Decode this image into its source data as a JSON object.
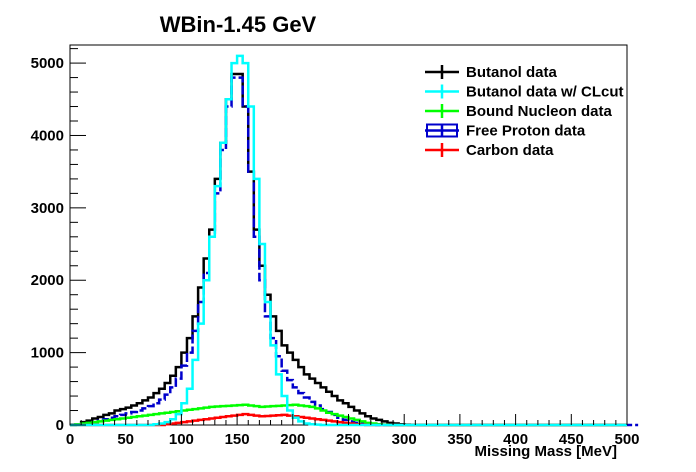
{
  "chart_data": {
    "type": "line",
    "title": "WBin-1.45 GeV",
    "xlabel": "Missing Mass [MeV]",
    "ylabel": "",
    "xlim": [
      0,
      500
    ],
    "ylim": [
      0,
      5250
    ],
    "xticks": [
      0,
      50,
      100,
      150,
      200,
      250,
      300,
      350,
      400,
      450,
      500
    ],
    "yticks": [
      0,
      1000,
      2000,
      3000,
      4000,
      5000
    ],
    "grid": false,
    "legend_position": "top-right",
    "bin_width": 5,
    "series": [
      {
        "name": "Butanol data",
        "color": "#000000",
        "values": [
          5,
          10,
          40,
          60,
          90,
          110,
          140,
          160,
          200,
          220,
          240,
          270,
          300,
          340,
          380,
          440,
          500,
          580,
          680,
          800,
          1000,
          1200,
          1500,
          1900,
          2300,
          2700,
          3400,
          3900,
          4500,
          4850,
          4850,
          4400,
          3500,
          2700,
          2200,
          1800,
          1500,
          1300,
          1100,
          1000,
          900,
          800,
          700,
          640,
          580,
          520,
          460,
          400,
          340,
          300,
          250,
          200,
          160,
          120,
          90,
          70,
          50,
          30,
          20,
          10,
          5,
          3,
          0,
          0,
          0,
          0,
          0,
          0,
          0,
          0,
          0,
          0,
          0,
          0,
          0,
          0,
          0,
          0,
          0,
          0,
          0,
          0,
          0,
          0,
          0,
          0,
          0,
          0,
          0,
          0,
          0,
          0,
          0,
          0,
          0,
          0,
          0,
          0,
          0,
          0
        ]
      },
      {
        "name": "Butanol data w/ CLcut",
        "color": "#00ffff",
        "values": [
          0,
          0,
          0,
          0,
          0,
          0,
          0,
          0,
          0,
          0,
          0,
          0,
          0,
          0,
          0,
          10,
          20,
          40,
          80,
          150,
          300,
          500,
          900,
          1400,
          2000,
          2600,
          3300,
          3900,
          4500,
          5000,
          5100,
          5000,
          4400,
          3400,
          2500,
          1700,
          1100,
          700,
          400,
          200,
          100,
          50,
          20,
          10,
          5,
          0,
          0,
          0,
          0,
          0,
          0,
          0,
          0,
          0,
          0,
          0,
          0,
          0,
          0,
          0,
          0,
          0,
          0,
          0,
          0,
          0,
          0,
          0,
          0,
          0,
          0,
          0,
          0,
          0,
          0,
          0,
          0,
          0,
          0,
          0,
          0,
          0,
          0,
          0,
          0,
          0,
          0,
          0,
          0,
          0,
          0,
          0,
          0,
          0,
          0,
          0,
          0,
          0,
          0,
          0
        ]
      },
      {
        "name": "Bound Nucleon data",
        "color": "#00ff00",
        "values": [
          0,
          10,
          20,
          30,
          40,
          50,
          60,
          70,
          80,
          90,
          100,
          110,
          120,
          130,
          140,
          150,
          160,
          170,
          180,
          190,
          200,
          210,
          220,
          230,
          240,
          250,
          255,
          260,
          265,
          270,
          275,
          280,
          270,
          260,
          250,
          255,
          260,
          265,
          270,
          275,
          280,
          270,
          260,
          250,
          230,
          200,
          170,
          150,
          130,
          110,
          90,
          70,
          50,
          30,
          20,
          10,
          5,
          0,
          0,
          0,
          0,
          0,
          0,
          0,
          0,
          0,
          0,
          0,
          0,
          0,
          0,
          0,
          0,
          0,
          0,
          0,
          0,
          0,
          0,
          0,
          0,
          0,
          0,
          0,
          0,
          0,
          0,
          0,
          0,
          0,
          0,
          0,
          0,
          0,
          0,
          0,
          0,
          0,
          0,
          0
        ]
      },
      {
        "name": "Free Proton data",
        "color": "#0000cc",
        "values": [
          0,
          5,
          10,
          20,
          40,
          60,
          80,
          100,
          120,
          140,
          160,
          180,
          200,
          230,
          260,
          300,
          350,
          420,
          520,
          640,
          820,
          1000,
          1300,
          1700,
          2100,
          2600,
          3200,
          3800,
          4400,
          4800,
          4800,
          4400,
          3500,
          2600,
          2000,
          1500,
          1200,
          950,
          750,
          620,
          520,
          440,
          380,
          320,
          270,
          220,
          180,
          140,
          100,
          70,
          50,
          30,
          20,
          10,
          5,
          0,
          0,
          0,
          0,
          0,
          0,
          0,
          0,
          0,
          0,
          0,
          0,
          0,
          0,
          0,
          0,
          0,
          0,
          0,
          0,
          0,
          0,
          0,
          0,
          0,
          0,
          0,
          0,
          0,
          0,
          0,
          0,
          0,
          0,
          0,
          0,
          0,
          0,
          0,
          0,
          0,
          0,
          0,
          0,
          0,
          0,
          0
        ]
      },
      {
        "name": "Carbon data",
        "color": "#ff0000",
        "values": [
          0,
          0,
          0,
          0,
          0,
          0,
          0,
          0,
          0,
          0,
          0,
          0,
          0,
          0,
          0,
          0,
          0,
          10,
          20,
          30,
          40,
          50,
          60,
          70,
          80,
          90,
          100,
          110,
          120,
          130,
          140,
          150,
          140,
          130,
          120,
          125,
          130,
          135,
          140,
          130,
          120,
          110,
          100,
          90,
          80,
          70,
          60,
          50,
          40,
          30,
          20,
          10,
          5,
          0,
          0,
          0,
          0,
          0,
          0,
          0,
          0,
          0,
          0,
          0,
          0,
          0,
          0,
          0,
          0,
          0,
          0,
          0,
          0,
          0,
          0,
          0,
          0,
          0,
          0,
          0,
          0,
          0,
          0,
          0,
          0,
          0,
          0,
          0,
          0,
          0,
          0,
          0,
          0,
          0,
          0,
          0,
          0,
          0,
          0,
          0
        ]
      }
    ]
  }
}
